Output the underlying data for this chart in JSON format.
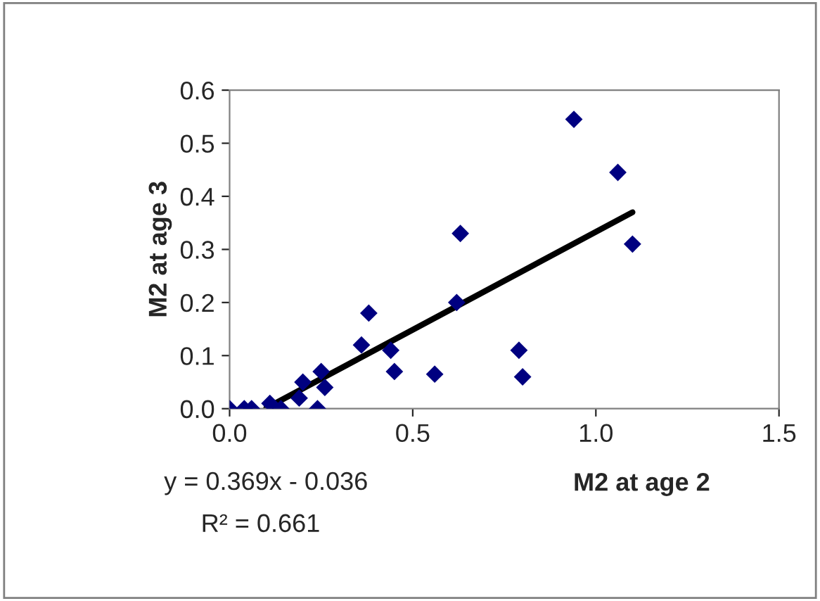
{
  "chart_data": {
    "type": "scatter",
    "xlabel": "M2 at age 2",
    "ylabel": "M2 at age 3",
    "xlim": [
      0,
      1.5
    ],
    "ylim": [
      0,
      0.6
    ],
    "xticks": [
      {
        "value": 0,
        "label": "0.0"
      },
      {
        "value": 0.5,
        "label": "0.5"
      },
      {
        "value": 1,
        "label": "1.0"
      },
      {
        "value": 1.5,
        "label": "1.5"
      }
    ],
    "yticks": [
      {
        "value": 0,
        "label": "0.0"
      },
      {
        "value": 0.1,
        "label": "0.1"
      },
      {
        "value": 0.2,
        "label": "0.2"
      },
      {
        "value": 0.3,
        "label": "0.3"
      },
      {
        "value": 0.4,
        "label": "0.4"
      },
      {
        "value": 0.5,
        "label": "0.5"
      },
      {
        "value": 0.6,
        "label": "0.6"
      }
    ],
    "grid": false,
    "legend": false,
    "series": [
      {
        "marker": "diamond",
        "color": "#000080",
        "x": [
          0,
          0.04,
          0.06,
          0.11,
          0.14,
          0.19,
          0.2,
          0.24,
          0.25,
          0.26,
          0.36,
          0.38,
          0.44,
          0.45,
          0.56,
          0.63,
          0.62,
          0.79,
          0.8,
          0.94,
          1.06,
          1.1
        ],
        "values": [
          0,
          0,
          0,
          0.01,
          0,
          0.02,
          0.05,
          0,
          0.07,
          0.04,
          0.12,
          0.18,
          0.11,
          0.07,
          0.065,
          0.33,
          0.2,
          0.11,
          0.06,
          0.545,
          0.445,
          0.31
        ]
      },
      {
        "type": "line",
        "color": "#000000",
        "x": [
          0.1,
          1.1
        ],
        "values": [
          0.001,
          0.37
        ]
      }
    ],
    "annotations": [
      "y = 0.369x - 0.036",
      "R² = 0.661"
    ]
  }
}
